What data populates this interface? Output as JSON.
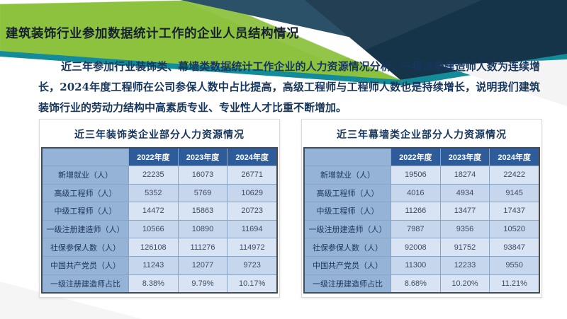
{
  "slide": {
    "title": "建筑装饰行业参加数据统计工作的企业人员结构情况",
    "paragraph": "近三年参加行业装饰类、幕墙类数据统计工作企业的人力资源情况分析，一级注册建造师人数为连续增长，2024年度工程师在公司参保人数中占比提高，高级工程师与工程师人数也是持续增长，说明我们建筑装饰行业的劳动力结构中高素质专业、专业性人才比重不断增加。"
  },
  "colors": {
    "banner_green": "#8cc23e",
    "banner_navy_dark": "#15344a",
    "banner_teal": "#148b99",
    "table_header_blue": "#2e5b9a",
    "table_label_blue": "#95b3d7",
    "table_band_light": "#d8e3f3",
    "table_band_dark": "#c6d6ed",
    "title_text": "#16202c",
    "paragraph_text": "#17365d"
  },
  "tables": [
    {
      "title": "近三年装饰类企业部分人力资源情况",
      "columns": [
        "",
        "2022年度",
        "2023年度",
        "2024年度"
      ],
      "rows": [
        {
          "label": "新增就业（人）",
          "values": [
            "22235",
            "16073",
            "26771"
          ]
        },
        {
          "label": "高级工程师（人）",
          "values": [
            "5352",
            "5769",
            "10629"
          ]
        },
        {
          "label": "中级工程师（人）",
          "values": [
            "14472",
            "15863",
            "20723"
          ]
        },
        {
          "label": "一级注册建造师（人）",
          "values": [
            "10566",
            "10890",
            "11694"
          ]
        },
        {
          "label": "社保参保人数（人）",
          "values": [
            "126108",
            "111276",
            "114972"
          ]
        },
        {
          "label": "中国共产党员（人）",
          "values": [
            "11243",
            "12077",
            "9723"
          ]
        },
        {
          "label": "一级注册建造师占比",
          "values": [
            "8.38%",
            "9.79%",
            "10.17%"
          ]
        }
      ]
    },
    {
      "title": "近三年幕墙类企业部分人力资源情况",
      "columns": [
        "",
        "2022年度",
        "2023年度",
        "2024年度"
      ],
      "rows": [
        {
          "label": "新增就业（人）",
          "values": [
            "19506",
            "18274",
            "22422"
          ]
        },
        {
          "label": "高级工程师（人）",
          "values": [
            "4016",
            "4934",
            "9145"
          ]
        },
        {
          "label": "中级工程师（人）",
          "values": [
            "11266",
            "13477",
            "17437"
          ]
        },
        {
          "label": "一级注册建造师（人）",
          "values": [
            "7987",
            "9356",
            "10520"
          ]
        },
        {
          "label": "社保参保人数（人）",
          "values": [
            "92008",
            "91752",
            "93847"
          ]
        },
        {
          "label": "中国共产党员（人）",
          "values": [
            "11300",
            "12233",
            "9550"
          ]
        },
        {
          "label": "一级注册建造师占比",
          "values": [
            "8.68%",
            "10.20%",
            "11.21%"
          ]
        }
      ]
    }
  ]
}
